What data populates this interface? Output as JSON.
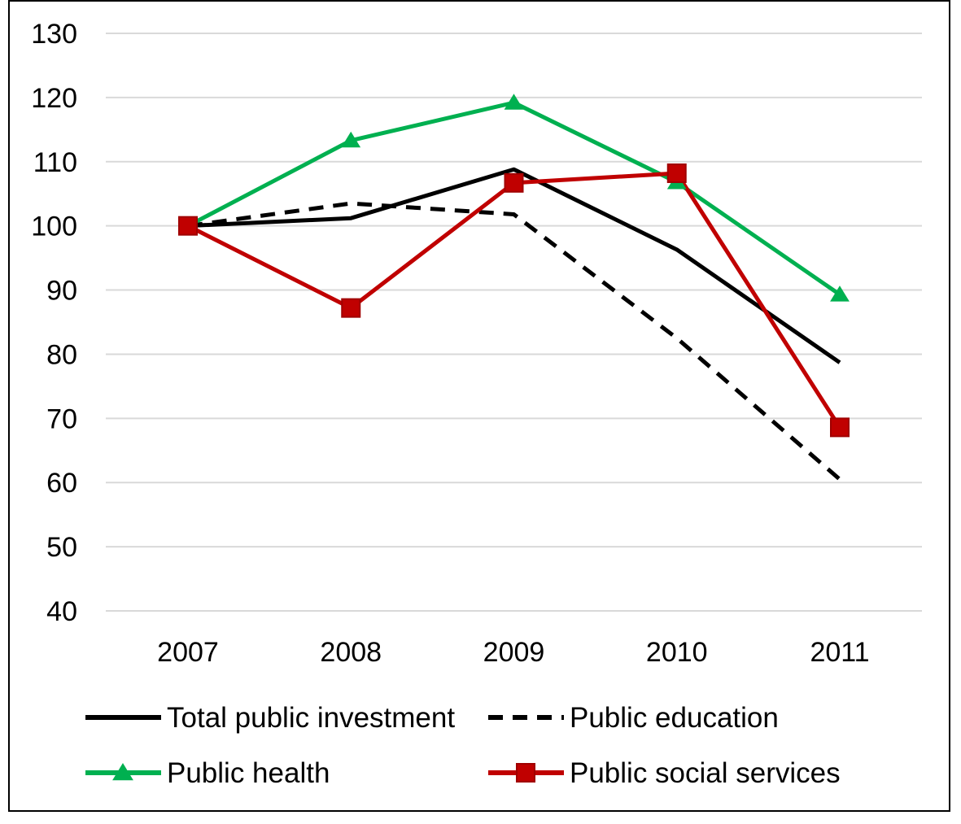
{
  "chart_data": {
    "type": "line",
    "categories": [
      "2007",
      "2008",
      "2009",
      "2010",
      "2011"
    ],
    "ylim": [
      40,
      130
    ],
    "yticks": [
      40,
      50,
      60,
      70,
      80,
      90,
      100,
      110,
      120,
      130
    ],
    "grid": true,
    "legend_position": "bottom",
    "series": [
      {
        "name": "Total public investment",
        "values": [
          100,
          101.2,
          108.8,
          96.3,
          78.7
        ],
        "color": "#000000",
        "dash": "solid",
        "marker": "none"
      },
      {
        "name": "Public education",
        "values": [
          100,
          103.5,
          101.8,
          82.5,
          60.5
        ],
        "color": "#000000",
        "dash": "dashed",
        "marker": "none"
      },
      {
        "name": "Public health",
        "values": [
          100,
          113.3,
          119.2,
          106.8,
          89.3
        ],
        "color": "#00b050",
        "dash": "solid",
        "marker": "triangle"
      },
      {
        "name": "Public social services",
        "values": [
          100,
          87.2,
          106.7,
          108.2,
          68.6
        ],
        "color": "#c00000",
        "dash": "solid",
        "marker": "square"
      }
    ]
  }
}
